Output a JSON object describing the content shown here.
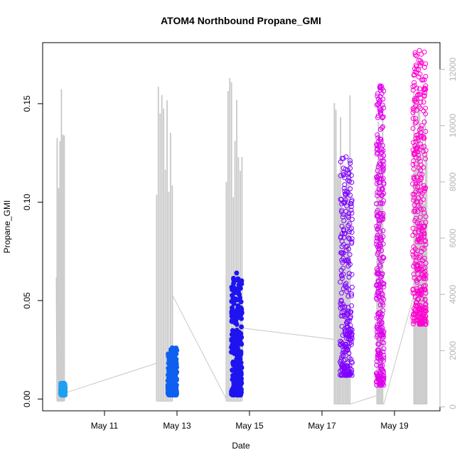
{
  "chart_data": {
    "type": "scatter",
    "title": "ATOM4 Northbound Propane_GMI",
    "xlabel": "Date",
    "ylabel": "Propane_GMI",
    "x_ticks": [
      "May 11",
      "May 13",
      "May 15",
      "May 17",
      "May 19"
    ],
    "y_ticks": [
      "0.00",
      "0.05",
      "0.10",
      "0.15"
    ],
    "y_right_ticks": [
      "0",
      "2000",
      "4000",
      "6000",
      "8000",
      "10000",
      "12000"
    ],
    "ylim": [
      -0.006,
      0.181
    ],
    "y_right_lim": [
      -140,
      12950
    ],
    "grid": false,
    "legend": "none",
    "colors": {
      "series": [
        "#1ea0f0",
        "#0f5ff0",
        "#1e14f0",
        "#8000ff",
        "#e000ee",
        "#ff00d0"
      ],
      "altitude_line": "#c8c8c8",
      "right_axis": "#b4b4b4"
    },
    "series": [
      {
        "date": "May 9",
        "x_range": [
          "2016-05-09 19:00",
          "2016-05-09 22:00"
        ],
        "y_range": [
          0.002,
          0.008
        ]
      },
      {
        "date": "May 12",
        "x_range": [
          "2016-05-12 18:00",
          "2016-05-12 23:59"
        ],
        "y_range": [
          0.002,
          0.026
        ]
      },
      {
        "date": "May 14",
        "x_range": [
          "2016-05-14 12:00",
          "2016-05-14 19:00"
        ],
        "y_range": [
          0.002,
          0.064
        ]
      },
      {
        "date": "May 17",
        "x_range": [
          "2016-05-17 12:00",
          "2016-05-17 20:00"
        ],
        "y_range": [
          0.012,
          0.123
        ]
      },
      {
        "date": "May 18",
        "x_range": [
          "2016-05-18 12:00",
          "2016-05-18 17:00"
        ],
        "y_range": [
          0.007,
          0.159
        ]
      },
      {
        "date": "May 19",
        "x_range": [
          "2016-05-19 12:00",
          "2016-05-19 21:00"
        ],
        "y_range": [
          0.038,
          0.177
        ]
      }
    ]
  }
}
